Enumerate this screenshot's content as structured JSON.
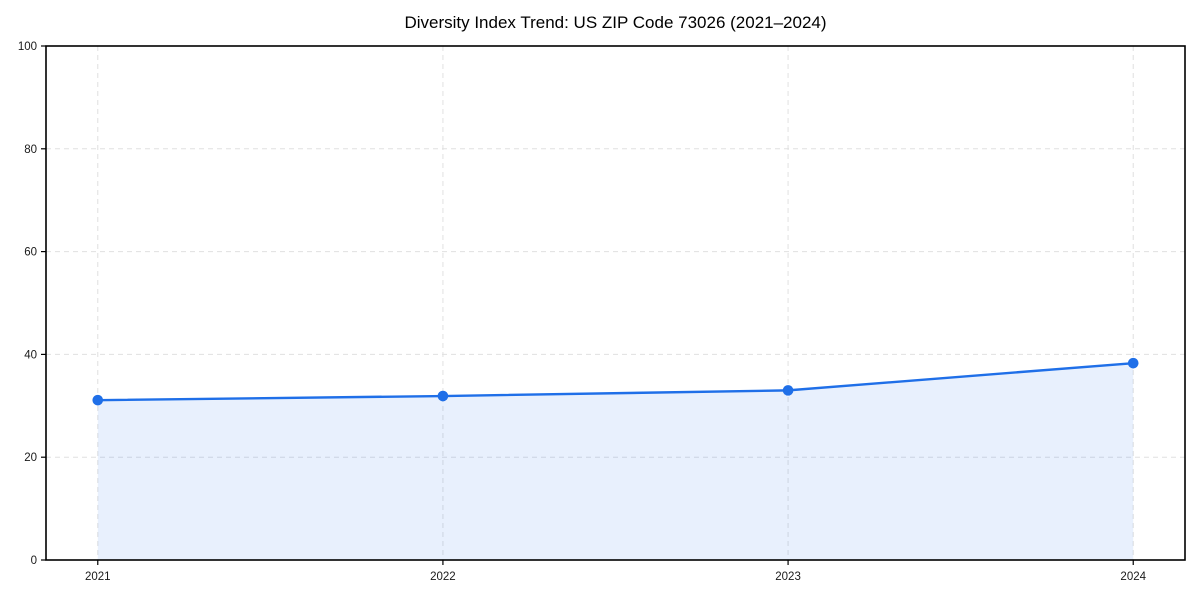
{
  "chart_data": {
    "type": "area",
    "title": "Diversity Index Trend: US ZIP Code 73026 (2021–2024)",
    "xlabel": "",
    "ylabel": "",
    "x": [
      2021,
      2022,
      2023,
      2024
    ],
    "series": [
      {
        "name": "Diversity Index",
        "values": [
          31.1,
          31.9,
          33.0,
          38.3
        ]
      }
    ],
    "xlim": [
      2020.85,
      2024.15
    ],
    "ylim": [
      0,
      100
    ],
    "xticks": [
      2021,
      2022,
      2023,
      2024
    ],
    "yticks": [
      0,
      20,
      40,
      60,
      80,
      100
    ],
    "grid": true,
    "grid_style": "dashed",
    "legend_position": "none",
    "colors": {
      "line": "#1f6fe8",
      "marker": "#1f6fe8",
      "fill": "#1f6fe8",
      "fill_opacity": 0.1,
      "grid": "#e0e0e0",
      "frame": "#000000",
      "tick_label": "#1a1a1a",
      "title": "#000000",
      "background": "#ffffff"
    },
    "marker_radius": 5.3,
    "line_width": 2.4
  }
}
